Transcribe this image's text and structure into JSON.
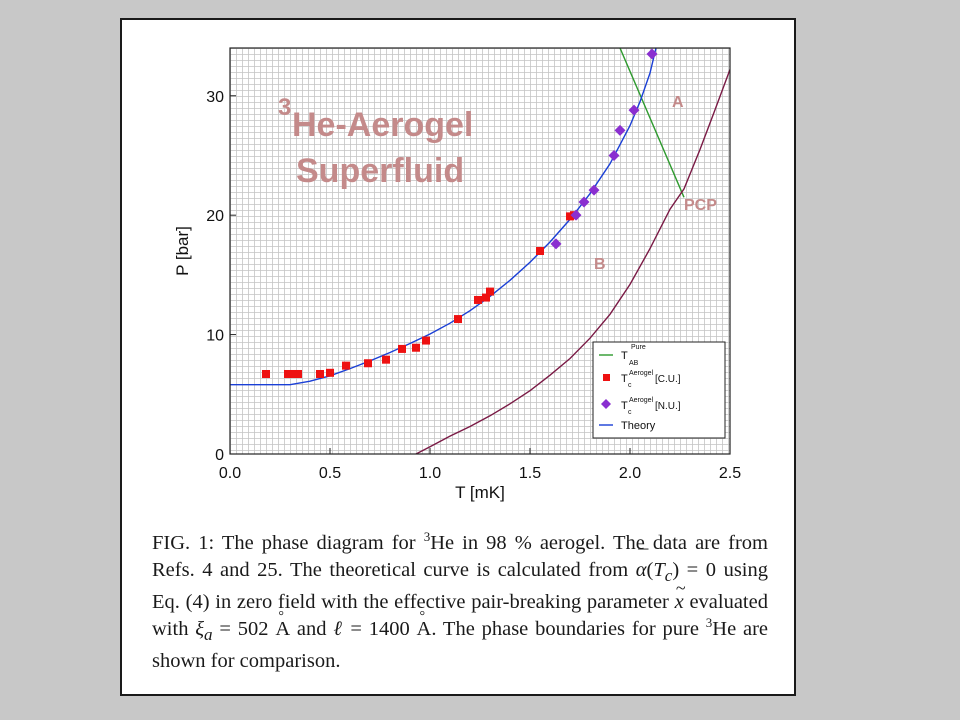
{
  "chart_data": {
    "type": "line",
    "xlabel": "T [mK]",
    "ylabel": "P [bar]",
    "xlim": [
      0,
      2.5
    ],
    "ylim": [
      0,
      34
    ],
    "xticks": [
      "0.0",
      "0.5",
      "1.0",
      "1.5",
      "2.0",
      "2.5"
    ],
    "yticks": [
      "0",
      "10",
      "20",
      "30"
    ],
    "grid": true,
    "legend_position": "bottom-right",
    "title_parts": [
      "3",
      "He-Aerogel",
      "Superfluid"
    ],
    "annotations": [
      "A",
      "PCP",
      "B"
    ],
    "legend": {
      "tab": {
        "base": "T",
        "sup": "Pure",
        "sub": "AB"
      },
      "tc_cu": {
        "base": "T",
        "sup": "Aerogel",
        "sub": "c",
        "suffix": "[C.U.]"
      },
      "tc_nu": {
        "base": "T",
        "sup": "Aerogel",
        "sub": "c",
        "suffix": "[N.U.]"
      },
      "theory": "Theory"
    },
    "series": [
      {
        "key": "tab",
        "style": "line",
        "color": "#2e9a2e",
        "points": [
          [
            1.95,
            34
          ],
          [
            2.27,
            21.5
          ]
        ]
      },
      {
        "key": "tc_cu",
        "style": "square",
        "color": "#ee1111",
        "points": [
          [
            0.18,
            6.7
          ],
          [
            0.29,
            6.7
          ],
          [
            0.32,
            6.7
          ],
          [
            0.34,
            6.7
          ],
          [
            0.45,
            6.7
          ],
          [
            0.5,
            6.8
          ],
          [
            0.58,
            7.4
          ],
          [
            0.69,
            7.6
          ],
          [
            0.78,
            7.9
          ],
          [
            0.86,
            8.8
          ],
          [
            0.93,
            8.9
          ],
          [
            0.98,
            9.5
          ],
          [
            1.14,
            11.3
          ],
          [
            1.24,
            12.9
          ],
          [
            1.28,
            13.1
          ],
          [
            1.3,
            13.6
          ],
          [
            1.55,
            17.0
          ],
          [
            1.7,
            19.9
          ],
          [
            1.72,
            20.0
          ]
        ]
      },
      {
        "key": "tc_nu",
        "style": "diamond",
        "color": "#8a2fd0",
        "points": [
          [
            1.63,
            17.6
          ],
          [
            1.73,
            20.0
          ],
          [
            1.77,
            21.1
          ],
          [
            1.82,
            22.1
          ],
          [
            1.92,
            25.0
          ],
          [
            1.95,
            27.1
          ],
          [
            2.02,
            28.8
          ],
          [
            2.11,
            33.5
          ]
        ]
      },
      {
        "key": "theory",
        "style": "line",
        "color": "#1a3fd6",
        "points": [
          [
            0.0,
            5.8
          ],
          [
            0.3,
            5.8
          ],
          [
            0.4,
            6.1
          ],
          [
            0.5,
            6.55
          ],
          [
            0.6,
            7.15
          ],
          [
            0.7,
            7.8
          ],
          [
            0.8,
            8.5
          ],
          [
            0.9,
            9.25
          ],
          [
            1.0,
            10.05
          ],
          [
            1.1,
            10.95
          ],
          [
            1.2,
            12.0
          ],
          [
            1.3,
            13.2
          ],
          [
            1.4,
            14.55
          ],
          [
            1.5,
            16.05
          ],
          [
            1.6,
            17.75
          ],
          [
            1.7,
            19.65
          ],
          [
            1.8,
            21.8
          ],
          [
            1.9,
            24.3
          ],
          [
            2.0,
            27.5
          ],
          [
            2.05,
            29.5
          ],
          [
            2.1,
            31.9
          ],
          [
            2.13,
            34
          ]
        ]
      },
      {
        "key": "pure_tc",
        "style": "line",
        "color": "#7a1a45",
        "points": [
          [
            0.93,
            0
          ],
          [
            1.0,
            0.6
          ],
          [
            1.1,
            1.5
          ],
          [
            1.2,
            2.3
          ],
          [
            1.3,
            3.2
          ],
          [
            1.4,
            4.2
          ],
          [
            1.5,
            5.3
          ],
          [
            1.6,
            6.6
          ],
          [
            1.7,
            8.0
          ],
          [
            1.8,
            9.7
          ],
          [
            1.9,
            11.7
          ],
          [
            2.0,
            14.2
          ],
          [
            2.1,
            17.2
          ],
          [
            2.2,
            20.5
          ],
          [
            2.27,
            22.2
          ],
          [
            2.35,
            25.5
          ],
          [
            2.42,
            28.6
          ],
          [
            2.5,
            32.2
          ],
          [
            2.54,
            34
          ]
        ]
      }
    ]
  },
  "caption": {
    "label": "FIG. 1:",
    "t1": " The phase diagram for ",
    "sup3": "3",
    "t2": "He in 98 % aerogel. The data are from Refs. 4 and 25. The theoretical curve is calculated from ",
    "alpha": "α",
    "t3": "(",
    "tc": "T",
    "tcsub": "c",
    "t4": ") = 0 using Eq. (4) in zero field with the effective pair-breaking parameter ",
    "xvar": "x",
    "t5": " evaluated with ",
    "xi": "ξ",
    "xisub": "a",
    "t6": " = 502 ",
    "ang1": "A",
    "t7": " and ",
    "ell": "ℓ",
    "t8": " = 1400 ",
    "ang2": "A",
    "t9": ". The phase boundaries for pure ",
    "sup3b": "3",
    "t10": "He are shown for comparison."
  }
}
